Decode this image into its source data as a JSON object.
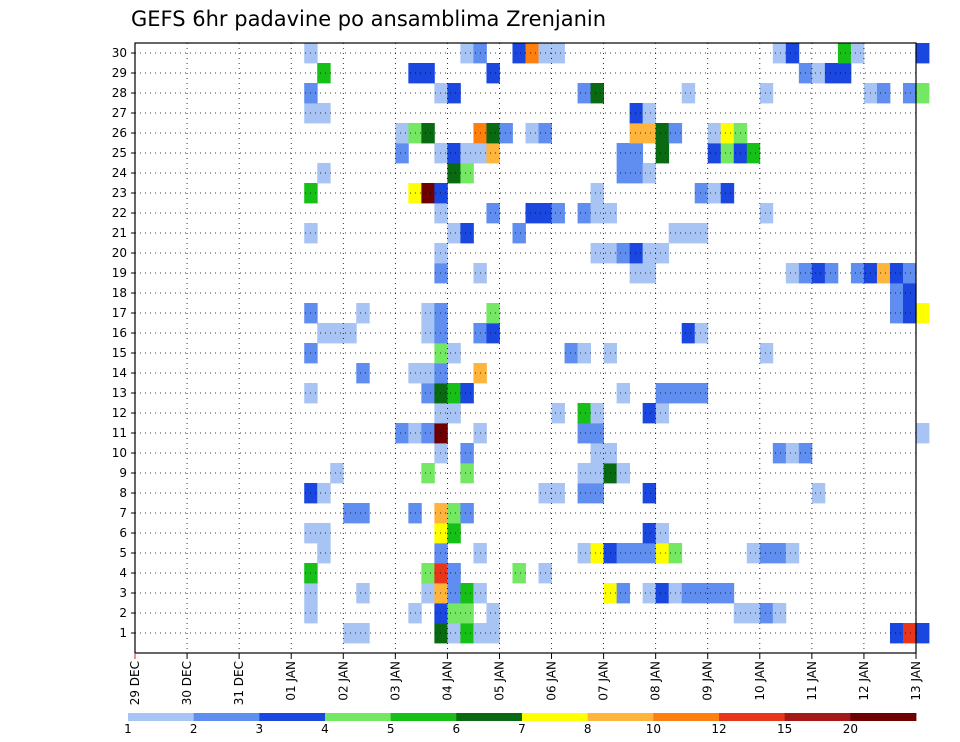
{
  "chart_data": {
    "type": "heatmap",
    "title": "GEFS 6hr padavine po ansamblima Zrenjanin",
    "x_ticks": [
      "29 DEC",
      "30 DEC",
      "31 DEC",
      "01 JAN",
      "02 JAN",
      "03 JAN",
      "04 JAN",
      "05 JAN",
      "06 JAN",
      "07 JAN",
      "08 JAN",
      "09 JAN",
      "10 JAN",
      "11 JAN",
      "12 JAN",
      "13 JAN"
    ],
    "y_ticks": [
      1,
      2,
      3,
      4,
      5,
      6,
      7,
      8,
      9,
      10,
      11,
      12,
      13,
      14,
      15,
      16,
      17,
      18,
      19,
      20,
      21,
      22,
      23,
      24,
      25,
      26,
      27,
      28,
      29,
      30
    ],
    "x_range": [
      "29 DEC",
      "13 JAN"
    ],
    "y_range": [
      1,
      30
    ],
    "steps_per_day": 4,
    "colorbar": {
      "tick_labels": [
        "1",
        "2",
        "3",
        "4",
        "5",
        "6",
        "7",
        "8",
        "10",
        "12",
        "15",
        "20"
      ],
      "colors": [
        "#a8c4f5",
        "#5f8ef0",
        "#1a47e0",
        "#74e862",
        "#16c016",
        "#0a6a12",
        "#ffff00",
        "#ffb43c",
        "#ff7f0e",
        "#e8361a",
        "#a51818",
        "#6e0000"
      ]
    },
    "grid": true,
    "members": {
      "30": [
        [
          13,
          1
        ],
        [
          25,
          1
        ],
        [
          26,
          2
        ],
        [
          29,
          3
        ],
        [
          30,
          9
        ],
        [
          31,
          1
        ],
        [
          32,
          1
        ],
        [
          49,
          1
        ],
        [
          50,
          3
        ],
        [
          54,
          5
        ],
        [
          55,
          1
        ],
        [
          60,
          3
        ]
      ],
      "29": [
        [
          14,
          5
        ],
        [
          21,
          3
        ],
        [
          22,
          3
        ],
        [
          27,
          3
        ],
        [
          51,
          2
        ],
        [
          52,
          1
        ],
        [
          53,
          3
        ],
        [
          54,
          3
        ]
      ],
      "28": [
        [
          13,
          2
        ],
        [
          23,
          1
        ],
        [
          24,
          3
        ],
        [
          34,
          2
        ],
        [
          35,
          6
        ],
        [
          42,
          1
        ],
        [
          48,
          1
        ],
        [
          56,
          1
        ],
        [
          57,
          2
        ],
        [
          59,
          2
        ],
        [
          60,
          4
        ]
      ],
      "27": [
        [
          13,
          1
        ],
        [
          14,
          1
        ],
        [
          38,
          3
        ],
        [
          39,
          1
        ]
      ],
      "26": [
        [
          20,
          1
        ],
        [
          21,
          4
        ],
        [
          22,
          6
        ],
        [
          26,
          9
        ],
        [
          27,
          6
        ],
        [
          28,
          2
        ],
        [
          30,
          1
        ],
        [
          31,
          2
        ],
        [
          38,
          8
        ],
        [
          39,
          8
        ],
        [
          40,
          6
        ],
        [
          41,
          2
        ],
        [
          44,
          1
        ],
        [
          45,
          7
        ],
        [
          46,
          4
        ]
      ],
      "25": [
        [
          20,
          2
        ],
        [
          23,
          1
        ],
        [
          24,
          3
        ],
        [
          25,
          1
        ],
        [
          26,
          1
        ],
        [
          27,
          8
        ],
        [
          37,
          2
        ],
        [
          38,
          2
        ],
        [
          40,
          6
        ],
        [
          44,
          3
        ],
        [
          45,
          4
        ],
        [
          46,
          3
        ],
        [
          47,
          5
        ]
      ],
      "24": [
        [
          14,
          1
        ],
        [
          24,
          6
        ],
        [
          25,
          4
        ],
        [
          37,
          2
        ],
        [
          38,
          2
        ],
        [
          39,
          1
        ]
      ],
      "23": [
        [
          13,
          5
        ],
        [
          21,
          7
        ],
        [
          22,
          12
        ],
        [
          23,
          3
        ],
        [
          35,
          1
        ],
        [
          43,
          2
        ],
        [
          44,
          1
        ],
        [
          45,
          3
        ]
      ],
      "22": [
        [
          23,
          1
        ],
        [
          27,
          2
        ],
        [
          30,
          3
        ],
        [
          31,
          3
        ],
        [
          32,
          2
        ],
        [
          34,
          2
        ],
        [
          35,
          1
        ],
        [
          36,
          1
        ],
        [
          48,
          1
        ]
      ],
      "21": [
        [
          13,
          1
        ],
        [
          24,
          1
        ],
        [
          25,
          3
        ],
        [
          29,
          2
        ],
        [
          41,
          1
        ],
        [
          42,
          1
        ],
        [
          43,
          1
        ]
      ],
      "20": [
        [
          23,
          1
        ],
        [
          35,
          1
        ],
        [
          36,
          1
        ],
        [
          37,
          2
        ],
        [
          38,
          3
        ],
        [
          39,
          1
        ],
        [
          40,
          1
        ]
      ],
      "19": [
        [
          23,
          2
        ],
        [
          26,
          1
        ],
        [
          38,
          1
        ],
        [
          39,
          1
        ],
        [
          50,
          1
        ],
        [
          51,
          2
        ],
        [
          52,
          3
        ],
        [
          53,
          2
        ],
        [
          55,
          2
        ],
        [
          56,
          3
        ],
        [
          57,
          8
        ],
        [
          58,
          3
        ],
        [
          59,
          2
        ]
      ],
      "18": [
        [
          58,
          2
        ],
        [
          59,
          3
        ]
      ],
      "17": [
        [
          13,
          2
        ],
        [
          17,
          1
        ],
        [
          22,
          1
        ],
        [
          23,
          2
        ],
        [
          27,
          4
        ],
        [
          58,
          2
        ],
        [
          59,
          3
        ],
        [
          60,
          7
        ]
      ],
      "16": [
        [
          14,
          1
        ],
        [
          15,
          1
        ],
        [
          16,
          1
        ],
        [
          22,
          1
        ],
        [
          23,
          2
        ],
        [
          26,
          2
        ],
        [
          27,
          3
        ],
        [
          42,
          3
        ],
        [
          43,
          1
        ]
      ],
      "15": [
        [
          13,
          2
        ],
        [
          23,
          4
        ],
        [
          24,
          1
        ],
        [
          33,
          2
        ],
        [
          34,
          1
        ],
        [
          36,
          1
        ],
        [
          48,
          1
        ]
      ],
      "14": [
        [
          17,
          2
        ],
        [
          21,
          1
        ],
        [
          22,
          1
        ],
        [
          23,
          2
        ],
        [
          26,
          8
        ]
      ],
      "13": [
        [
          13,
          1
        ],
        [
          22,
          2
        ],
        [
          23,
          6
        ],
        [
          24,
          5
        ],
        [
          25,
          3
        ],
        [
          37,
          1
        ],
        [
          40,
          2
        ],
        [
          41,
          2
        ],
        [
          42,
          2
        ],
        [
          43,
          2
        ]
      ],
      "12": [
        [
          23,
          1
        ],
        [
          24,
          1
        ],
        [
          32,
          1
        ],
        [
          34,
          5
        ],
        [
          35,
          1
        ],
        [
          39,
          3
        ],
        [
          40,
          1
        ]
      ],
      "11": [
        [
          20,
          2
        ],
        [
          21,
          1
        ],
        [
          22,
          2
        ],
        [
          23,
          12
        ],
        [
          26,
          1
        ],
        [
          34,
          2
        ],
        [
          35,
          2
        ],
        [
          60,
          1
        ]
      ],
      "10": [
        [
          23,
          1
        ],
        [
          25,
          2
        ],
        [
          35,
          1
        ],
        [
          36,
          1
        ],
        [
          49,
          2
        ],
        [
          50,
          1
        ],
        [
          51,
          2
        ]
      ],
      "9": [
        [
          15,
          1
        ],
        [
          22,
          4
        ],
        [
          25,
          4
        ],
        [
          34,
          1
        ],
        [
          35,
          1
        ],
        [
          36,
          6
        ],
        [
          37,
          1
        ]
      ],
      "8": [
        [
          13,
          3
        ],
        [
          14,
          1
        ],
        [
          31,
          1
        ],
        [
          32,
          1
        ],
        [
          34,
          2
        ],
        [
          35,
          2
        ],
        [
          39,
          3
        ],
        [
          52,
          1
        ]
      ],
      "7": [
        [
          16,
          2
        ],
        [
          17,
          2
        ],
        [
          21,
          2
        ],
        [
          23,
          8
        ],
        [
          24,
          4
        ],
        [
          25,
          2
        ]
      ],
      "6": [
        [
          13,
          1
        ],
        [
          14,
          1
        ],
        [
          23,
          7
        ],
        [
          24,
          5
        ],
        [
          39,
          3
        ],
        [
          40,
          1
        ]
      ],
      "5": [
        [
          14,
          1
        ],
        [
          23,
          2
        ],
        [
          26,
          1
        ],
        [
          34,
          1
        ],
        [
          35,
          7
        ],
        [
          36,
          3
        ],
        [
          37,
          2
        ],
        [
          38,
          2
        ],
        [
          39,
          2
        ],
        [
          40,
          7
        ],
        [
          41,
          4
        ],
        [
          47,
          1
        ],
        [
          48,
          2
        ],
        [
          49,
          2
        ],
        [
          50,
          1
        ]
      ],
      "4": [
        [
          13,
          5
        ],
        [
          22,
          4
        ],
        [
          23,
          10
        ],
        [
          24,
          2
        ],
        [
          29,
          4
        ],
        [
          31,
          1
        ]
      ],
      "3": [
        [
          13,
          1
        ],
        [
          17,
          1
        ],
        [
          22,
          1
        ],
        [
          23,
          8
        ],
        [
          24,
          2
        ],
        [
          25,
          5
        ],
        [
          26,
          1
        ],
        [
          36,
          7
        ],
        [
          37,
          2
        ],
        [
          39,
          1
        ],
        [
          40,
          3
        ],
        [
          41,
          1
        ],
        [
          42,
          2
        ],
        [
          43,
          2
        ],
        [
          44,
          2
        ],
        [
          45,
          2
        ]
      ],
      "2": [
        [
          13,
          1
        ],
        [
          21,
          1
        ],
        [
          23,
          3
        ],
        [
          24,
          4
        ],
        [
          25,
          4
        ],
        [
          27,
          1
        ],
        [
          46,
          1
        ],
        [
          47,
          1
        ],
        [
          48,
          2
        ],
        [
          49,
          1
        ]
      ],
      "1": [
        [
          16,
          1
        ],
        [
          17,
          1
        ],
        [
          23,
          6
        ],
        [
          24,
          1
        ],
        [
          25,
          5
        ],
        [
          26,
          1
        ],
        [
          27,
          1
        ],
        [
          58,
          3
        ],
        [
          59,
          10
        ],
        [
          60,
          3
        ]
      ]
    }
  }
}
